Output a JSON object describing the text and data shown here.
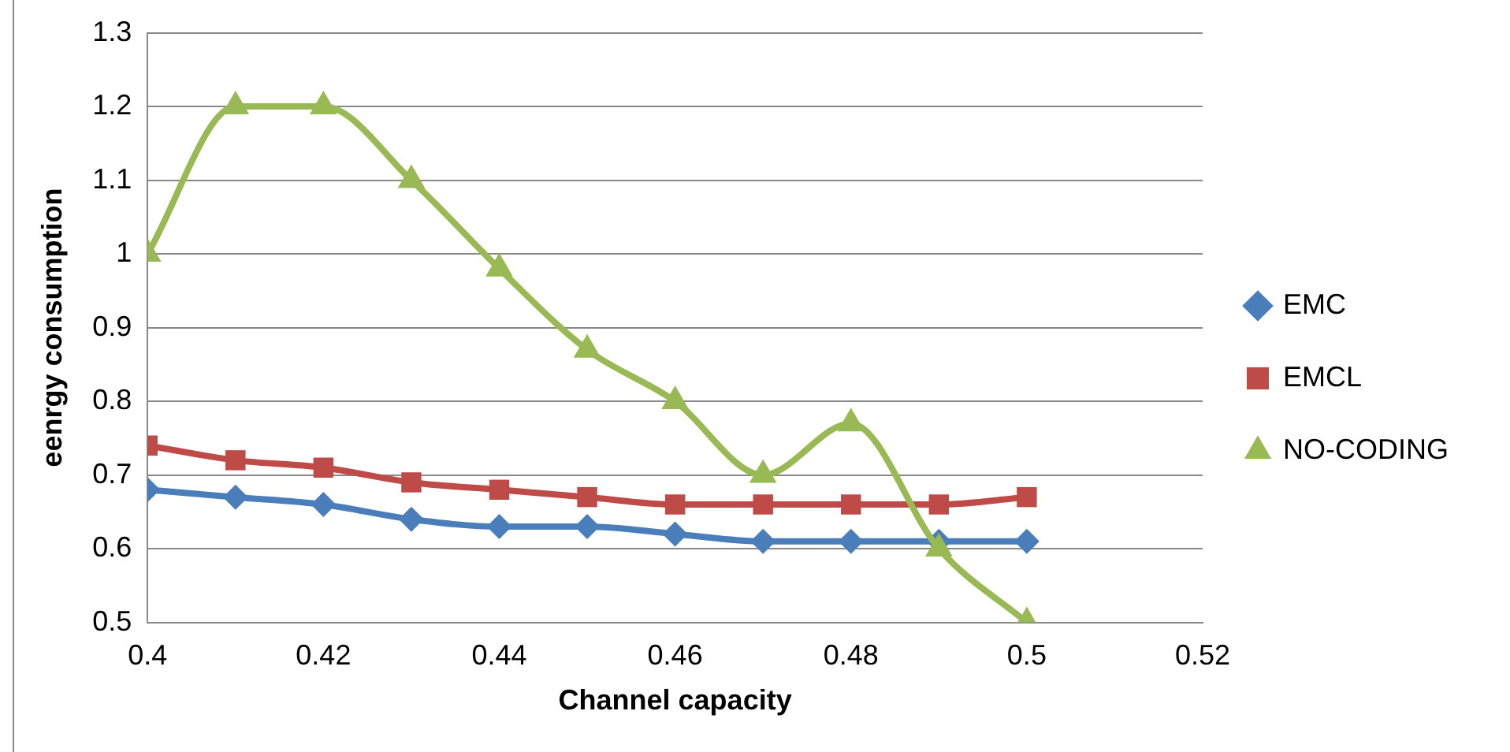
{
  "chart_data": {
    "type": "line",
    "xlabel": "Channel capacity",
    "ylabel": "eenrgy consumption",
    "x": [
      0.4,
      0.41,
      0.42,
      0.43,
      0.44,
      0.45,
      0.46,
      0.47,
      0.48,
      0.49,
      0.5
    ],
    "series": [
      {
        "name": "EMC",
        "color": "#4a7ebb",
        "marker": "diamond",
        "values": [
          0.68,
          0.67,
          0.66,
          0.64,
          0.63,
          0.63,
          0.62,
          0.61,
          0.61,
          0.61,
          0.61
        ]
      },
      {
        "name": "EMCL",
        "color": "#be4b48",
        "marker": "square",
        "values": [
          0.74,
          0.72,
          0.71,
          0.69,
          0.68,
          0.67,
          0.66,
          0.66,
          0.66,
          0.66,
          0.67
        ]
      },
      {
        "name": "NO-CODING",
        "color": "#98b954",
        "marker": "triangle",
        "values": [
          1.0,
          1.2,
          1.2,
          1.1,
          0.98,
          0.87,
          0.8,
          0.7,
          0.77,
          0.6,
          0.5
        ]
      }
    ],
    "xlim": [
      0.4,
      0.52
    ],
    "xticks": [
      0.4,
      0.42,
      0.44,
      0.46,
      0.48,
      0.5,
      0.52
    ],
    "ylim": [
      0.5,
      1.3
    ],
    "yticks": [
      0.5,
      0.6,
      0.7,
      0.8,
      0.9,
      1,
      1.1,
      1.2,
      1.3
    ],
    "grid": "y",
    "legend": "right"
  }
}
